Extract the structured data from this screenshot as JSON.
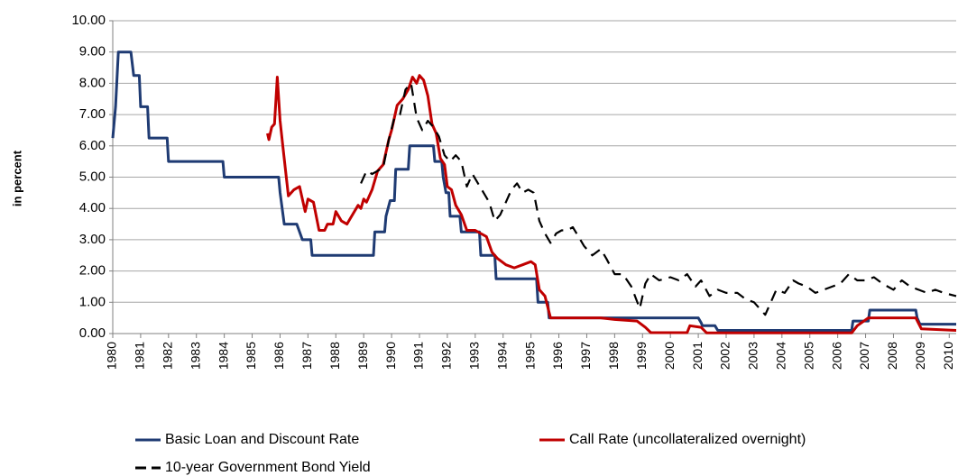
{
  "chart_data": {
    "type": "line",
    "y_label": "in percent",
    "xlim": [
      1980,
      2010.25
    ],
    "xticks": [
      1980,
      1981,
      1982,
      1983,
      1984,
      1985,
      1986,
      1987,
      1988,
      1989,
      1990,
      1991,
      1992,
      1993,
      1994,
      1995,
      1996,
      1997,
      1998,
      1999,
      2000,
      2001,
      2002,
      2003,
      2004,
      2005,
      2006,
      2007,
      2008,
      2009,
      2010
    ],
    "ylim": [
      0,
      10
    ],
    "yticks": [
      {
        "value": 0,
        "label": "0.00"
      },
      {
        "value": 1,
        "label": "1.00"
      },
      {
        "value": 2,
        "label": "2.00"
      },
      {
        "value": 3,
        "label": "3.00"
      },
      {
        "value": 4,
        "label": "4.00"
      },
      {
        "value": 5,
        "label": "5.00"
      },
      {
        "value": 6,
        "label": "6.00"
      },
      {
        "value": 7,
        "label": "7.00"
      },
      {
        "value": 8,
        "label": "8.00"
      },
      {
        "value": 9,
        "label": "9.00"
      },
      {
        "value": 10,
        "label": "10.00"
      }
    ],
    "grid": true,
    "legend": "bottom",
    "series": [
      {
        "name": "Basic Loan and Discount Rate",
        "color": "#1f3b73",
        "linestyle": "solid",
        "x": [
          1980.0,
          1980.1,
          1980.2,
          1980.65,
          1980.75,
          1980.95,
          1981.0,
          1981.25,
          1981.3,
          1981.95,
          1982.0,
          1983.95,
          1984.0,
          1985.95,
          1986.0,
          1986.15,
          1986.6,
          1986.8,
          1987.1,
          1987.15,
          1989.35,
          1989.4,
          1989.75,
          1989.8,
          1989.95,
          1990.1,
          1990.15,
          1990.6,
          1990.65,
          1991.5,
          1991.55,
          1991.8,
          1991.85,
          1991.95,
          1992.05,
          1992.1,
          1992.45,
          1992.5,
          1993.15,
          1993.2,
          1993.7,
          1993.75,
          1995.2,
          1995.25,
          1995.6,
          1995.65,
          2001.0,
          2001.1,
          2001.15,
          2001.6,
          2001.7,
          2006.5,
          2006.55,
          2007.1,
          2007.15,
          2008.8,
          2008.85,
          2008.95,
          2010.25
        ],
        "values": [
          6.25,
          7.25,
          9.0,
          9.0,
          8.25,
          8.25,
          7.25,
          7.25,
          6.25,
          6.25,
          5.5,
          5.5,
          5.0,
          5.0,
          4.5,
          3.5,
          3.5,
          3.0,
          3.0,
          2.5,
          2.5,
          3.25,
          3.25,
          3.75,
          4.25,
          4.25,
          5.25,
          5.25,
          6.0,
          6.0,
          5.5,
          5.5,
          5.0,
          4.5,
          4.5,
          3.75,
          3.75,
          3.25,
          3.25,
          2.5,
          2.5,
          1.75,
          1.75,
          1.0,
          1.0,
          0.5,
          0.5,
          0.35,
          0.25,
          0.25,
          0.1,
          0.1,
          0.4,
          0.4,
          0.75,
          0.75,
          0.5,
          0.3,
          0.3
        ]
      },
      {
        "name": "Call Rate (uncollateralized overnight)",
        "color": "#c00000",
        "linestyle": "solid",
        "x": [
          1985.55,
          1985.6,
          1985.7,
          1985.8,
          1985.9,
          1986.0,
          1986.1,
          1986.3,
          1986.5,
          1986.7,
          1986.9,
          1987.0,
          1987.2,
          1987.4,
          1987.6,
          1987.7,
          1987.9,
          1988.0,
          1988.2,
          1988.4,
          1988.6,
          1988.8,
          1988.9,
          1989.0,
          1989.1,
          1989.3,
          1989.5,
          1989.7,
          1989.9,
          1990.0,
          1990.2,
          1990.4,
          1990.6,
          1990.75,
          1990.9,
          1991.0,
          1991.15,
          1991.3,
          1991.45,
          1991.6,
          1991.75,
          1991.9,
          1992.0,
          1992.15,
          1992.3,
          1992.5,
          1992.7,
          1993.0,
          1993.2,
          1993.4,
          1993.6,
          1993.8,
          1994.1,
          1994.4,
          1994.7,
          1995.0,
          1995.15,
          1995.3,
          1995.5,
          1995.7,
          1996.5,
          1997.0,
          1997.5,
          1998.0,
          1998.8,
          1999.1,
          1999.3,
          2000.6,
          2000.7,
          2001.1,
          2001.3,
          2006.5,
          2006.7,
          2007.1,
          2008.0,
          2008.8,
          2009.0,
          2010.25
        ],
        "values": [
          6.4,
          6.2,
          6.6,
          6.7,
          8.2,
          6.8,
          6.0,
          4.4,
          4.6,
          4.7,
          3.9,
          4.3,
          4.2,
          3.3,
          3.3,
          3.5,
          3.5,
          3.9,
          3.6,
          3.5,
          3.8,
          4.1,
          4.0,
          4.3,
          4.2,
          4.6,
          5.2,
          5.4,
          6.2,
          6.5,
          7.3,
          7.5,
          7.8,
          8.2,
          8.0,
          8.25,
          8.1,
          7.6,
          6.7,
          6.4,
          5.6,
          5.4,
          4.7,
          4.6,
          4.1,
          3.8,
          3.3,
          3.3,
          3.2,
          3.1,
          2.6,
          2.4,
          2.2,
          2.1,
          2.2,
          2.3,
          2.2,
          1.4,
          1.2,
          0.5,
          0.5,
          0.5,
          0.5,
          0.45,
          0.4,
          0.2,
          0.03,
          0.03,
          0.25,
          0.2,
          0.02,
          0.02,
          0.25,
          0.5,
          0.5,
          0.5,
          0.15,
          0.1
        ]
      },
      {
        "name": "10-year Government Bond Yield",
        "color": "#000000",
        "linestyle": "dashed",
        "x": [
          1988.9,
          1989.1,
          1989.3,
          1989.5,
          1989.7,
          1989.9,
          1990.1,
          1990.3,
          1990.5,
          1990.7,
          1990.9,
          1991.1,
          1991.3,
          1991.5,
          1991.7,
          1991.9,
          1992.1,
          1992.3,
          1992.5,
          1992.7,
          1992.9,
          1993.1,
          1993.3,
          1993.5,
          1993.7,
          1993.9,
          1994.1,
          1994.3,
          1994.5,
          1994.7,
          1994.9,
          1995.1,
          1995.3,
          1995.5,
          1995.7,
          1995.9,
          1996.1,
          1996.3,
          1996.5,
          1996.7,
          1996.9,
          1997.2,
          1997.5,
          1997.7,
          1998.0,
          1998.3,
          1998.6,
          1998.9,
          1999.1,
          1999.3,
          1999.6,
          2000.0,
          2000.3,
          2000.6,
          2000.9,
          2001.1,
          2001.4,
          2001.7,
          2002.0,
          2002.4,
          2002.7,
          2003.0,
          2003.4,
          2003.6,
          2003.8,
          2004.1,
          2004.4,
          2004.6,
          2004.9,
          2005.2,
          2005.5,
          2005.8,
          2006.1,
          2006.4,
          2006.7,
          2007.0,
          2007.3,
          2007.6,
          2008.0,
          2008.3,
          2008.6,
          2008.9,
          2009.2,
          2009.5,
          2009.8,
          2010.25
        ],
        "values": [
          4.8,
          5.2,
          5.1,
          5.2,
          5.3,
          6.2,
          6.9,
          7.0,
          7.8,
          8.0,
          6.9,
          6.5,
          6.8,
          6.6,
          6.3,
          5.7,
          5.5,
          5.7,
          5.5,
          4.7,
          5.1,
          4.8,
          4.5,
          4.2,
          3.6,
          3.8,
          4.2,
          4.6,
          4.8,
          4.5,
          4.6,
          4.5,
          3.6,
          3.2,
          2.9,
          3.2,
          3.3,
          3.3,
          3.4,
          3.1,
          2.8,
          2.5,
          2.7,
          2.4,
          1.9,
          1.9,
          1.5,
          0.8,
          1.6,
          1.9,
          1.7,
          1.8,
          1.7,
          1.9,
          1.5,
          1.7,
          1.2,
          1.4,
          1.3,
          1.3,
          1.1,
          1.0,
          0.6,
          1.0,
          1.4,
          1.3,
          1.7,
          1.6,
          1.5,
          1.3,
          1.4,
          1.5,
          1.6,
          1.9,
          1.7,
          1.7,
          1.8,
          1.6,
          1.4,
          1.7,
          1.5,
          1.4,
          1.3,
          1.4,
          1.3,
          1.2
        ]
      }
    ]
  }
}
